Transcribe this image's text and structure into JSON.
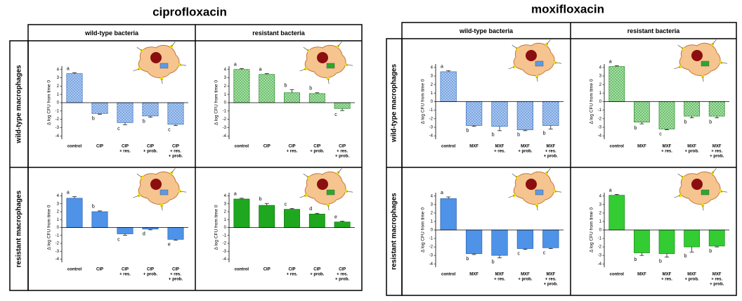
{
  "panels": [
    {
      "title": "ciprofloxacin",
      "columns": [
        "wild-type bacteria",
        "resistant bacteria"
      ],
      "rows": [
        "wild-type macrophages",
        "resistant macrophages"
      ]
    },
    {
      "title": "moxifloxacin",
      "columns": [
        "wild-type bacteria",
        "resistant bacteria"
      ],
      "rows": [
        "wild-type macrophages",
        "resistant macrophages"
      ]
    }
  ],
  "chart_data": [
    {
      "type": "bar",
      "ylabel": "Δ log CFU from time 0",
      "categories": [
        [
          "control"
        ],
        [
          "CIP"
        ],
        [
          "CIP",
          "+ res."
        ],
        [
          "CIP",
          "+ prob."
        ],
        [
          "CIP",
          "+ res.",
          "+ prob."
        ]
      ],
      "values": [
        3.5,
        -1.3,
        -2.4,
        -1.6,
        -2.6
      ],
      "errors": [
        0.1,
        0.1,
        0.25,
        0.15,
        0.15
      ],
      "significance": [
        "a",
        "b",
        "c",
        "b",
        "c"
      ],
      "color": "#a9c9f2",
      "edgecolor": "#3b6fc0",
      "hatch": true,
      "ylim": [
        -4.4,
        4.4
      ],
      "yticks": [
        4,
        3,
        2,
        1,
        0,
        -1,
        -2,
        -3,
        -4
      ]
    },
    {
      "type": "bar",
      "ylabel": "Δ log CFU from time 0",
      "categories": [
        [
          "control"
        ],
        [
          "CIP"
        ],
        [
          "CIP",
          "+ res."
        ],
        [
          "CIP",
          "+ prob."
        ],
        [
          "CIP",
          "+ res.",
          "+ prob."
        ]
      ],
      "values": [
        4.0,
        3.4,
        1.2,
        1.1,
        -0.7
      ],
      "errors": [
        0.1,
        0.1,
        0.35,
        0.1,
        0.25
      ],
      "significance": [
        "a",
        "a",
        "b",
        "b",
        "c"
      ],
      "color": "#a3e0a3",
      "edgecolor": "#2a8a2a",
      "hatch": true,
      "ylim": [
        -4.4,
        4.4
      ],
      "yticks": [
        4,
        3,
        2,
        1,
        0,
        -1,
        -2,
        -3,
        -4
      ]
    },
    {
      "type": "bar",
      "ylabel": "Δ log CFU from time 0",
      "categories": [
        [
          "control"
        ],
        [
          "CIP"
        ],
        [
          "CIP",
          "+ res."
        ],
        [
          "CIP",
          "+ prob."
        ],
        [
          "CIP",
          "+ res.",
          "+ prob."
        ]
      ],
      "values": [
        3.7,
        2.0,
        -0.8,
        -0.2,
        -1.5
      ],
      "errors": [
        0.2,
        0.1,
        0.2,
        0.1,
        0.1
      ],
      "significance": [
        "a",
        "b",
        "c",
        "d",
        "e"
      ],
      "color": "#4f93e8",
      "edgecolor": "#2a5fb0",
      "hatch": false,
      "ylim": [
        -4.4,
        4.4
      ],
      "yticks": [
        4,
        3,
        2,
        1,
        0,
        -1,
        -2,
        -3,
        -4
      ]
    },
    {
      "type": "bar",
      "ylabel": "Δ log CFU from time 0",
      "categories": [
        [
          "control"
        ],
        [
          "CIP"
        ],
        [
          "CIP",
          "+ res."
        ],
        [
          "CIP",
          "+ prob."
        ],
        [
          "CIP",
          "+ res.",
          "+ prob."
        ]
      ],
      "values": [
        3.6,
        2.8,
        2.3,
        1.7,
        0.7
      ],
      "errors": [
        0.1,
        0.25,
        0.1,
        0.1,
        0.1
      ],
      "significance": [
        "a",
        "b",
        "c",
        "d",
        "e"
      ],
      "color": "#1fa81f",
      "edgecolor": "#137013",
      "hatch": false,
      "ylim": [
        -4.4,
        4.4
      ],
      "yticks": [
        4,
        3,
        2,
        1,
        0,
        -1,
        -2,
        -3,
        -4
      ]
    },
    {
      "type": "bar",
      "ylabel": "Δ log CFU from time 0",
      "categories": [
        [
          "control"
        ],
        [
          "MXF"
        ],
        [
          "MXF",
          "+ res."
        ],
        [
          "MXF",
          "+ prob."
        ],
        [
          "MXF",
          "+ res.",
          "+ prob."
        ]
      ],
      "values": [
        3.5,
        -2.8,
        -2.9,
        -3.3,
        -2.8
      ],
      "errors": [
        0.1,
        0.1,
        0.5,
        0.1,
        0.4
      ],
      "significance": [
        "a",
        "b",
        "b",
        "b",
        "b"
      ],
      "color": "#a9c9f2",
      "edgecolor": "#3b6fc0",
      "hatch": true,
      "ylim": [
        -4.4,
        4.4
      ],
      "yticks": [
        4,
        3,
        2,
        1,
        0,
        -1,
        -2,
        -3,
        -4
      ]
    },
    {
      "type": "bar",
      "ylabel": "Δ log CFU from time 0",
      "categories": [
        [
          "control"
        ],
        [
          "MXF"
        ],
        [
          "MXF",
          "+ res."
        ],
        [
          "MXF",
          "+ prob."
        ],
        [
          "MXF",
          "+ res.",
          "+ prob."
        ]
      ],
      "values": [
        4.1,
        -2.4,
        -3.2,
        -1.7,
        -1.7
      ],
      "errors": [
        0.1,
        0.2,
        0.1,
        0.2,
        0.2
      ],
      "significance": [
        "a",
        "b",
        "c",
        "b",
        "b"
      ],
      "color": "#a3e0a3",
      "edgecolor": "#2a8a2a",
      "hatch": true,
      "ylim": [
        -4.4,
        4.4
      ],
      "yticks": [
        4,
        3,
        2,
        1,
        0,
        -1,
        -2,
        -3,
        -4
      ]
    },
    {
      "type": "bar",
      "ylabel": "Δ log CFU from time 0",
      "categories": [
        [
          "control"
        ],
        [
          "MXF"
        ],
        [
          "MXF",
          "+ res."
        ],
        [
          "MXF",
          "+ prob."
        ],
        [
          "MXF",
          "+ res.",
          "+ prob."
        ]
      ],
      "values": [
        3.7,
        -2.8,
        -3.0,
        -2.2,
        -2.1
      ],
      "errors": [
        0.2,
        0.1,
        0.3,
        0.1,
        0.1
      ],
      "significance": [
        "a",
        "b",
        "b",
        "c",
        "c"
      ],
      "color": "#4f93e8",
      "edgecolor": "#2a5fb0",
      "hatch": false,
      "ylim": [
        -4.4,
        4.4
      ],
      "yticks": [
        4,
        3,
        2,
        1,
        0,
        -1,
        -2,
        -3,
        -4
      ]
    },
    {
      "type": "bar",
      "ylabel": "Δ log CFU from time 0",
      "categories": [
        [
          "control"
        ],
        [
          "MXF"
        ],
        [
          "MXF",
          "+ res."
        ],
        [
          "MXF",
          "+ prob."
        ],
        [
          "MXF",
          "+ res.",
          "+ prob."
        ]
      ],
      "values": [
        4.1,
        -2.7,
        -2.8,
        -2.0,
        -1.9
      ],
      "errors": [
        0.1,
        0.3,
        0.4,
        0.6,
        0.1
      ],
      "significance": [
        "a",
        "b",
        "b",
        "b",
        "b"
      ],
      "color": "#33cc33",
      "edgecolor": "#1a8a1a",
      "hatch": false,
      "ylim": [
        -4.4,
        4.4
      ],
      "yticks": [
        4,
        3,
        2,
        1,
        0,
        -1,
        -2,
        -3,
        -4
      ]
    }
  ]
}
